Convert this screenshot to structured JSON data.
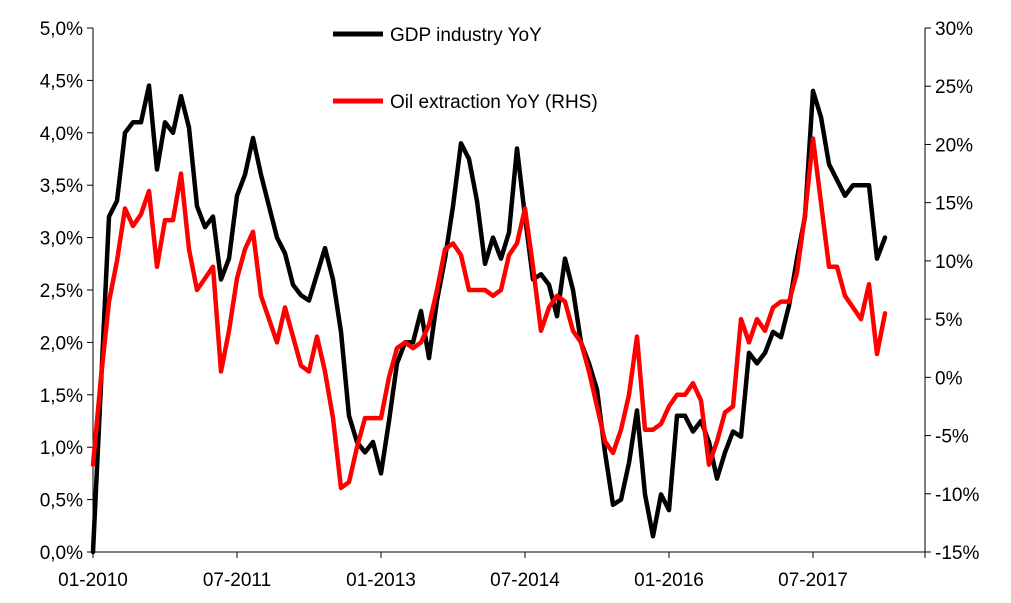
{
  "chart_data": {
    "type": "line",
    "title": "",
    "xlabel": "",
    "ylabel": "",
    "y2label": "",
    "x_tick_labels": [
      "01-2010",
      "07-2011",
      "01-2013",
      "07-2014",
      "01-2016",
      "07-2017"
    ],
    "y_left": {
      "range": [
        0.0,
        5.0
      ],
      "tick_labels": [
        "0,0%",
        "0,5%",
        "1,0%",
        "1,5%",
        "2,0%",
        "2,5%",
        "3,0%",
        "3,5%",
        "4,0%",
        "4,5%",
        "5,0%"
      ]
    },
    "y_right": {
      "range": [
        -15,
        30
      ],
      "tick_labels": [
        "-15%",
        "-10%",
        "-5%",
        "0%",
        "5%",
        "10%",
        "15%",
        "20%",
        "25%",
        "30%"
      ]
    },
    "grid": false,
    "legend_position": "top-center",
    "x_units": "months since 01-2010",
    "series": [
      {
        "name": "GDP industry YoY",
        "axis": "left",
        "color": "#000000",
        "x": [
          0,
          1,
          2,
          3,
          4,
          5,
          6,
          7,
          8,
          9,
          10,
          11,
          12,
          13,
          14,
          15,
          16,
          17,
          18,
          19,
          20,
          21,
          22,
          23,
          24,
          25,
          26,
          27,
          28,
          29,
          30,
          31,
          32,
          33,
          34,
          35,
          36,
          37,
          38,
          39,
          40,
          41,
          42,
          43,
          44,
          45,
          46,
          47,
          48,
          49,
          50,
          51,
          52,
          53,
          54,
          55,
          56,
          57,
          58,
          59,
          60,
          61,
          62,
          63,
          64,
          65,
          66,
          67,
          68,
          69,
          70,
          71,
          72,
          73,
          74,
          75,
          76,
          77,
          78,
          79,
          80,
          81,
          82,
          83,
          84,
          85,
          86,
          87,
          88,
          89,
          90,
          91,
          92,
          93,
          94,
          95,
          96,
          97,
          98,
          99
        ],
        "values": [
          0.0,
          1.6,
          3.2,
          3.35,
          4.0,
          4.1,
          4.1,
          4.45,
          3.65,
          4.1,
          4.0,
          4.35,
          4.05,
          3.3,
          3.1,
          3.2,
          2.6,
          2.8,
          3.4,
          3.6,
          3.95,
          3.6,
          3.3,
          3.0,
          2.85,
          2.55,
          2.45,
          2.4,
          2.65,
          2.9,
          2.6,
          2.1,
          1.3,
          1.05,
          0.95,
          1.05,
          0.75,
          1.25,
          1.8,
          2.0,
          2.0,
          2.3,
          1.85,
          2.4,
          2.8,
          3.3,
          3.9,
          3.75,
          3.35,
          2.75,
          3.0,
          2.8,
          3.05,
          3.85,
          3.2,
          2.6,
          2.65,
          2.55,
          2.25,
          2.8,
          2.5,
          2.0,
          1.8,
          1.55,
          0.95,
          0.45,
          0.5,
          0.85,
          1.35,
          0.55,
          0.15,
          0.55,
          0.4,
          1.3,
          1.3,
          1.15,
          1.25,
          1.05,
          0.7,
          0.95,
          1.15,
          1.1,
          1.9,
          1.8,
          1.9,
          2.1,
          2.05,
          2.35,
          2.8,
          3.2,
          4.4,
          4.15,
          3.7,
          3.55,
          3.4,
          3.5,
          3.5,
          3.5,
          2.8,
          3.0
        ]
      },
      {
        "name": "Oil extraction YoY (RHS)",
        "axis": "right",
        "color": "#ff0000",
        "x": [
          0,
          1,
          2,
          3,
          4,
          5,
          6,
          7,
          8,
          9,
          10,
          11,
          12,
          13,
          14,
          15,
          16,
          17,
          18,
          19,
          20,
          21,
          22,
          23,
          24,
          25,
          26,
          27,
          28,
          29,
          30,
          31,
          32,
          33,
          34,
          35,
          36,
          37,
          38,
          39,
          40,
          41,
          42,
          43,
          44,
          45,
          46,
          47,
          48,
          49,
          50,
          51,
          52,
          53,
          54,
          55,
          56,
          57,
          58,
          59,
          60,
          61,
          62,
          63,
          64,
          65,
          66,
          67,
          68,
          69,
          70,
          71,
          72,
          73,
          74,
          75,
          76,
          77,
          78,
          79,
          80,
          81,
          82,
          83,
          84,
          85,
          86,
          87,
          88,
          89,
          90,
          91,
          92,
          93,
          94,
          95,
          96,
          97,
          98,
          99
        ],
        "values": [
          -7.5,
          0.0,
          6.5,
          10.0,
          14.5,
          13.0,
          14.0,
          16.0,
          9.5,
          13.5,
          13.5,
          17.5,
          11.0,
          7.5,
          8.5,
          9.5,
          0.5,
          4.0,
          8.5,
          11.0,
          12.5,
          7.0,
          5.0,
          3.0,
          6.0,
          3.5,
          1.0,
          0.5,
          3.5,
          0.5,
          -3.5,
          -9.5,
          -9.0,
          -6.0,
          -3.5,
          -3.5,
          -3.5,
          0.0,
          2.5,
          3.0,
          2.5,
          3.0,
          4.5,
          7.5,
          11.0,
          11.5,
          10.5,
          7.5,
          7.5,
          7.5,
          7.0,
          7.5,
          10.5,
          11.5,
          14.5,
          9.5,
          4.0,
          6.0,
          7.0,
          6.5,
          4.0,
          3.0,
          0.5,
          -2.5,
          -5.5,
          -6.5,
          -4.5,
          -1.5,
          3.5,
          -4.5,
          -4.5,
          -4.0,
          -2.5,
          -1.5,
          -1.5,
          -0.5,
          -2.0,
          -7.5,
          -5.5,
          -3.0,
          -2.5,
          5.0,
          3.0,
          5.0,
          4.0,
          6.0,
          6.5,
          6.5,
          9.0,
          14.0,
          20.5,
          15.0,
          9.5,
          9.5,
          7.0,
          6.0,
          5.0,
          8.0,
          2.0,
          5.5
        ]
      }
    ]
  }
}
